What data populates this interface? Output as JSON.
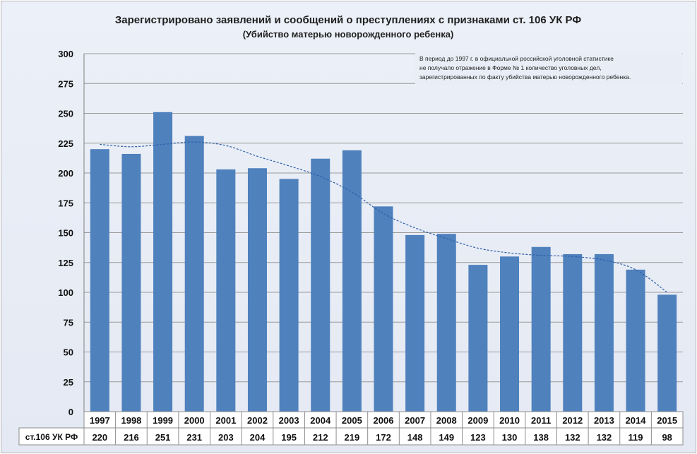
{
  "chart_data": {
    "type": "bar",
    "title": "Зарегистрировано  заявлений и сообщений о преступлениях с признаками ст. 106 УК РФ",
    "subtitle": "(Убийство матерью новорожденного ребенка)",
    "categories": [
      "1997",
      "1998",
      "1999",
      "2000",
      "2001",
      "2002",
      "2003",
      "2004",
      "2005",
      "2006",
      "2007",
      "2008",
      "2009",
      "2010",
      "2011",
      "2012",
      "2013",
      "2014",
      "2015"
    ],
    "series": [
      {
        "name": "ст.106 УК РФ",
        "values": [
          220,
          216,
          251,
          231,
          203,
          204,
          195,
          212,
          219,
          172,
          148,
          149,
          123,
          130,
          138,
          132,
          132,
          119,
          98
        ],
        "color": "#4f81bd"
      }
    ],
    "trendline": {
      "style": "dashed",
      "color": "#2f5fa8",
      "values": [
        224,
        222,
        224,
        226,
        223,
        214,
        206,
        197,
        184,
        166,
        154,
        145,
        137,
        133,
        131,
        130,
        127,
        119,
        100
      ]
    },
    "ylim": [
      0,
      300
    ],
    "yticks": [
      0,
      25,
      50,
      75,
      100,
      125,
      150,
      175,
      200,
      225,
      250,
      275,
      300
    ],
    "grid": true,
    "data_table": true,
    "annotation": [
      "В период до 1997 г. в официальной российской уголовной статистике",
      "не получало отражение в Форме № 1 количество уголовных дел,",
      "зарегистрированных по факту убийства матерью новорожденного ребенка."
    ]
  }
}
